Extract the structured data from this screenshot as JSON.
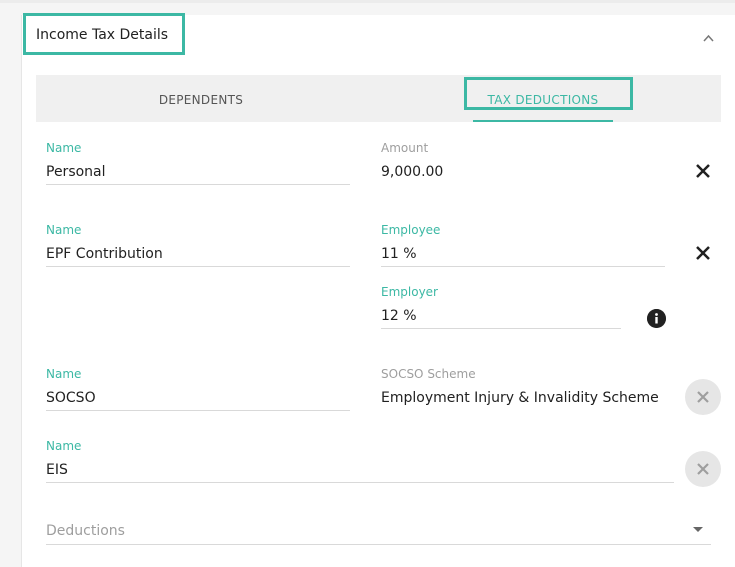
{
  "section": {
    "title": "Income Tax Details"
  },
  "tabs": [
    {
      "label": "DEPENDENTS",
      "active": false
    },
    {
      "label": "TAX DEDUCTIONS",
      "active": true
    }
  ],
  "deductions": [
    {
      "name_label": "Name",
      "name": "Personal",
      "amount_label": "Amount",
      "amount": "9,000.00"
    },
    {
      "name_label": "Name",
      "name": "EPF Contribution",
      "employee_label": "Employee",
      "employee": "11 %",
      "employer_label": "Employer",
      "employer": "12 %"
    },
    {
      "name_label": "Name",
      "name": "SOCSO",
      "scheme_label": "SOCSO Scheme",
      "scheme": "Employment Injury & Invalidity Scheme"
    },
    {
      "name_label": "Name",
      "name": "EIS"
    }
  ],
  "deductions_select": {
    "placeholder": "Deductions"
  },
  "colors": {
    "accent": "#3cb8a4",
    "highlight_border": "#3cb8a4"
  },
  "icons": {
    "collapse": "chevron-up-icon",
    "remove": "close-icon",
    "remove_disabled": "close-circle-icon",
    "info": "info-icon",
    "dropdown": "caret-down-icon"
  }
}
